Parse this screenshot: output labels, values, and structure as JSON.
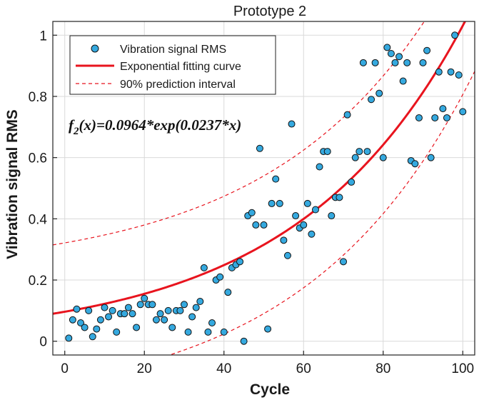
{
  "chart_data": {
    "type": "scatter",
    "title": "Prototype 2",
    "xlabel": "Cycle",
    "ylabel": "Vibration signal RMS",
    "xlim": [
      -3,
      103
    ],
    "ylim": [
      -0.045,
      1.045
    ],
    "xticks": [
      "0",
      "20",
      "40",
      "60",
      "80",
      "100"
    ],
    "yticks": [
      "0",
      "0.2",
      "0.4",
      "0.6",
      "0.8",
      "1"
    ],
    "xtick_values": [
      0,
      20,
      40,
      60,
      80,
      100
    ],
    "ytick_values": [
      0,
      0.2,
      0.4,
      0.6,
      0.8,
      1
    ],
    "grid": true,
    "legend_position": "top-left",
    "formula": {
      "prefix": "f",
      "subscript": "2",
      "suffix": "(x)=0.0964*exp(0.0237*x)"
    },
    "fit": {
      "a": 0.0964,
      "b": 0.0237,
      "lower_offset": -0.225,
      "upper_offset": 0.225
    },
    "series": [
      {
        "name": "Vibration signal RMS",
        "kind": "points",
        "marker_color": "#35a9df",
        "x": [
          1,
          2,
          3,
          4,
          5,
          6,
          7,
          8,
          9,
          10,
          11,
          12,
          13,
          14,
          15,
          16,
          17,
          18,
          19,
          20,
          21,
          22,
          23,
          24,
          25,
          26,
          27,
          28,
          29,
          30,
          31,
          32,
          33,
          34,
          35,
          36,
          37,
          38,
          39,
          40,
          41,
          42,
          43,
          44,
          45,
          46,
          47,
          48,
          49,
          50,
          51,
          52,
          53,
          54,
          55,
          56,
          57,
          58,
          59,
          60,
          61,
          62,
          63,
          64,
          65,
          66,
          67,
          68,
          69,
          70,
          71,
          72,
          73,
          74,
          75,
          76,
          77,
          78,
          79,
          80,
          81,
          82,
          83,
          84,
          85,
          86,
          87,
          88,
          89,
          90,
          91,
          92,
          93,
          94,
          95,
          96,
          97,
          98,
          99,
          100
        ],
        "y": [
          0.01,
          0.07,
          0.105,
          0.06,
          0.045,
          0.1,
          0.015,
          0.04,
          0.07,
          0.11,
          0.08,
          0.1,
          0.03,
          0.09,
          0.09,
          0.11,
          0.09,
          0.045,
          0.12,
          0.14,
          0.12,
          0.12,
          0.07,
          0.09,
          0.07,
          0.1,
          0.045,
          0.1,
          0.1,
          0.12,
          0.03,
          0.08,
          0.11,
          0.13,
          0.24,
          0.03,
          0.06,
          0.2,
          0.21,
          0.03,
          0.16,
          0.24,
          0.25,
          0.26,
          0.0,
          0.41,
          0.42,
          0.38,
          0.63,
          0.38,
          0.04,
          0.45,
          0.53,
          0.45,
          0.33,
          0.28,
          0.71,
          0.41,
          0.37,
          0.38,
          0.45,
          0.35,
          0.43,
          0.57,
          0.62,
          0.62,
          0.41,
          0.47,
          0.47,
          0.26,
          0.74,
          0.52,
          0.6,
          0.62,
          0.91,
          0.62,
          0.79,
          0.91,
          0.81,
          0.6,
          0.96,
          0.94,
          0.91,
          0.93,
          0.85,
          0.91,
          0.59,
          0.58,
          0.73,
          0.91,
          0.95,
          0.6,
          0.73,
          0.88,
          0.76,
          0.73,
          0.88,
          1.0,
          0.87,
          0.75
        ]
      },
      {
        "name": "Exponential fitting curve",
        "kind": "line",
        "color": "#e8141e",
        "style": "solid"
      },
      {
        "name": "90% prediction interval",
        "kind": "line",
        "color": "#e8141e",
        "style": "dashed"
      }
    ]
  }
}
